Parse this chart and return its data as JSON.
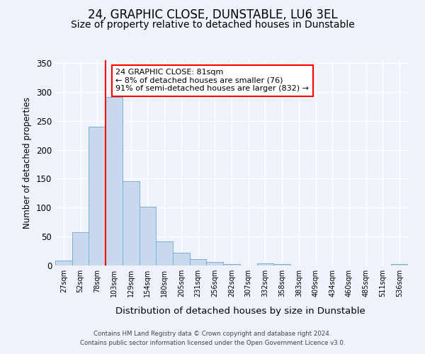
{
  "title": "24, GRAPHIC CLOSE, DUNSTABLE, LU6 3EL",
  "subtitle": "Size of property relative to detached houses in Dunstable",
  "xlabel": "Distribution of detached houses by size in Dunstable",
  "ylabel": "Number of detached properties",
  "bar_labels": [
    "27sqm",
    "52sqm",
    "78sqm",
    "103sqm",
    "129sqm",
    "154sqm",
    "180sqm",
    "205sqm",
    "231sqm",
    "256sqm",
    "282sqm",
    "307sqm",
    "332sqm",
    "358sqm",
    "383sqm",
    "409sqm",
    "434sqm",
    "460sqm",
    "485sqm",
    "511sqm",
    "536sqm"
  ],
  "bar_values": [
    8,
    57,
    240,
    291,
    146,
    101,
    42,
    22,
    11,
    6,
    2,
    0,
    4,
    3,
    0,
    0,
    0,
    0,
    0,
    0,
    2
  ],
  "bar_color": "#c9d9ed",
  "bar_edge_color": "#7bafd4",
  "ylim": [
    0,
    355
  ],
  "yticks": [
    0,
    50,
    100,
    150,
    200,
    250,
    300,
    350
  ],
  "vline_color": "red",
  "annotation_line1": "24 GRAPHIC CLOSE: 81sqm",
  "annotation_line2": "← 8% of detached houses are smaller (76)",
  "annotation_line3": "91% of semi-detached houses are larger (832) →",
  "annotation_box_color": "white",
  "annotation_box_edge_color": "red",
  "footer_line1": "Contains HM Land Registry data © Crown copyright and database right 2024.",
  "footer_line2": "Contains public sector information licensed under the Open Government Licence v3.0.",
  "background_color": "#eef2fa",
  "grid_color": "white",
  "title_fontsize": 12,
  "subtitle_fontsize": 10
}
